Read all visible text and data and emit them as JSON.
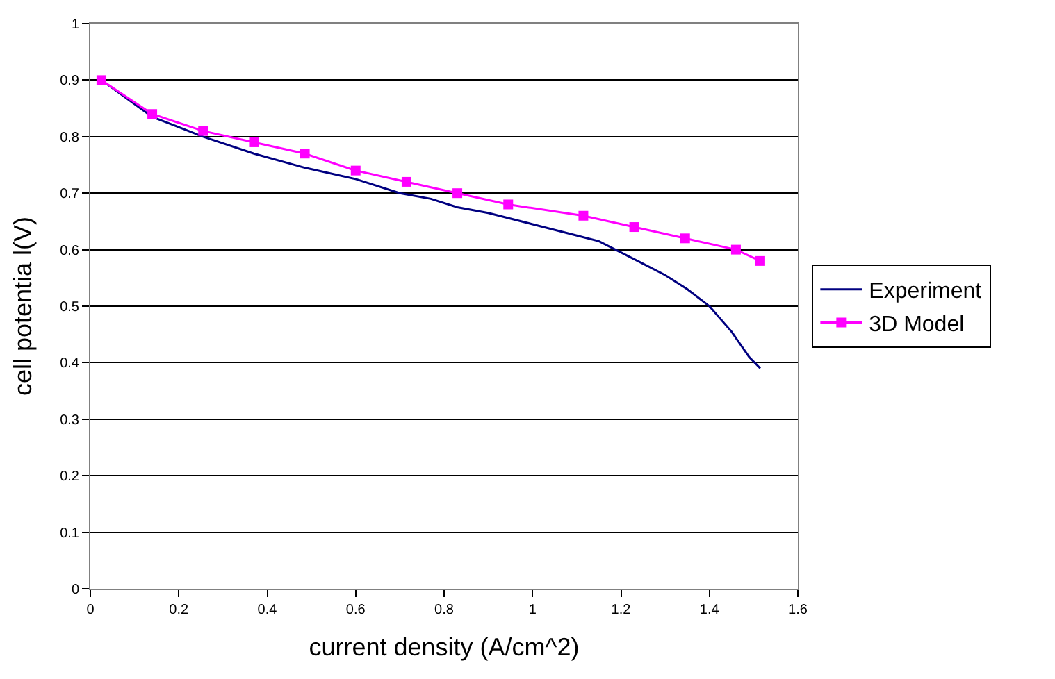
{
  "chart_data": {
    "type": "line",
    "xlabel": "current density (A/cm^2)",
    "ylabel": "cell potentia l(V)",
    "xlim": [
      0,
      1.6
    ],
    "xticks": [
      0,
      0.2,
      0.4,
      0.6,
      0.8,
      1,
      1.2,
      1.4,
      1.6
    ],
    "ylim": [
      0,
      1
    ],
    "yticks": [
      0,
      0.1,
      0.2,
      0.3,
      0.4,
      0.5,
      0.6,
      0.7,
      0.8,
      0.9,
      1
    ],
    "grid": "y",
    "legend": "right",
    "series": [
      {
        "name": "Experiment",
        "color": "#000080",
        "marker": "none",
        "x": [
          0.025,
          0.14,
          0.255,
          0.37,
          0.485,
          0.6,
          0.7,
          0.77,
          0.83,
          0.9,
          1.0,
          1.1,
          1.15,
          1.2,
          1.25,
          1.3,
          1.35,
          1.4,
          1.45,
          1.49,
          1.515
        ],
        "values": [
          0.9,
          0.835,
          0.8,
          0.77,
          0.745,
          0.725,
          0.7,
          0.69,
          0.675,
          0.665,
          0.645,
          0.625,
          0.615,
          0.595,
          0.575,
          0.555,
          0.53,
          0.5,
          0.455,
          0.41,
          0.39
        ]
      },
      {
        "name": "3D Model",
        "color": "#ff00ff",
        "marker": "square",
        "x": [
          0.025,
          0.14,
          0.255,
          0.37,
          0.485,
          0.6,
          0.715,
          0.83,
          0.945,
          1.115,
          1.23,
          1.345,
          1.46,
          1.515
        ],
        "values": [
          0.9,
          0.84,
          0.81,
          0.79,
          0.77,
          0.74,
          0.72,
          0.7,
          0.68,
          0.66,
          0.64,
          0.62,
          0.6,
          0.58
        ]
      }
    ]
  }
}
